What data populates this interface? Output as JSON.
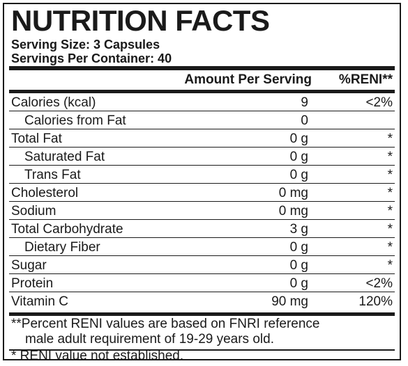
{
  "label": {
    "title": "NUTRITION FACTS",
    "serving_size": "Serving Size: 3 Capsules",
    "servings_per_container": "Servings Per Container: 40",
    "columns": {
      "amount": "Amount Per Serving",
      "reni": "%RENI**"
    },
    "rows": [
      {
        "name": "Calories (kcal)",
        "amount": "9",
        "reni": "<2%",
        "indent": false
      },
      {
        "name": "Calories from Fat",
        "amount": "0",
        "reni": "",
        "indent": true
      },
      {
        "name": "Total Fat",
        "amount": "0 g",
        "reni": "*",
        "indent": false
      },
      {
        "name": "Saturated Fat",
        "amount": "0 g",
        "reni": "*",
        "indent": true
      },
      {
        "name": "Trans Fat",
        "amount": "0 g",
        "reni": "*",
        "indent": true
      },
      {
        "name": "Cholesterol",
        "amount": "0 mg",
        "reni": "*",
        "indent": false
      },
      {
        "name": "Sodium",
        "amount": "0 mg",
        "reni": "*",
        "indent": false
      },
      {
        "name": "Total Carbohydrate",
        "amount": "3 g",
        "reni": "*",
        "indent": false
      },
      {
        "name": "Dietary Fiber",
        "amount": "0 g",
        "reni": "*",
        "indent": true
      },
      {
        "name": "Sugar",
        "amount": "0 g",
        "reni": "*",
        "indent": false
      },
      {
        "name": "Protein",
        "amount": "0 g",
        "reni": "<2%",
        "indent": false
      },
      {
        "name": "Vitamin C",
        "amount": "90 mg",
        "reni": "120%",
        "indent": false
      }
    ],
    "footnotes": {
      "reni_line1": "**Percent RENI values are based on FNRI reference",
      "reni_line2": "male adult requirement of 19-29 years old.",
      "not_established": "*  RENI value not established."
    }
  }
}
